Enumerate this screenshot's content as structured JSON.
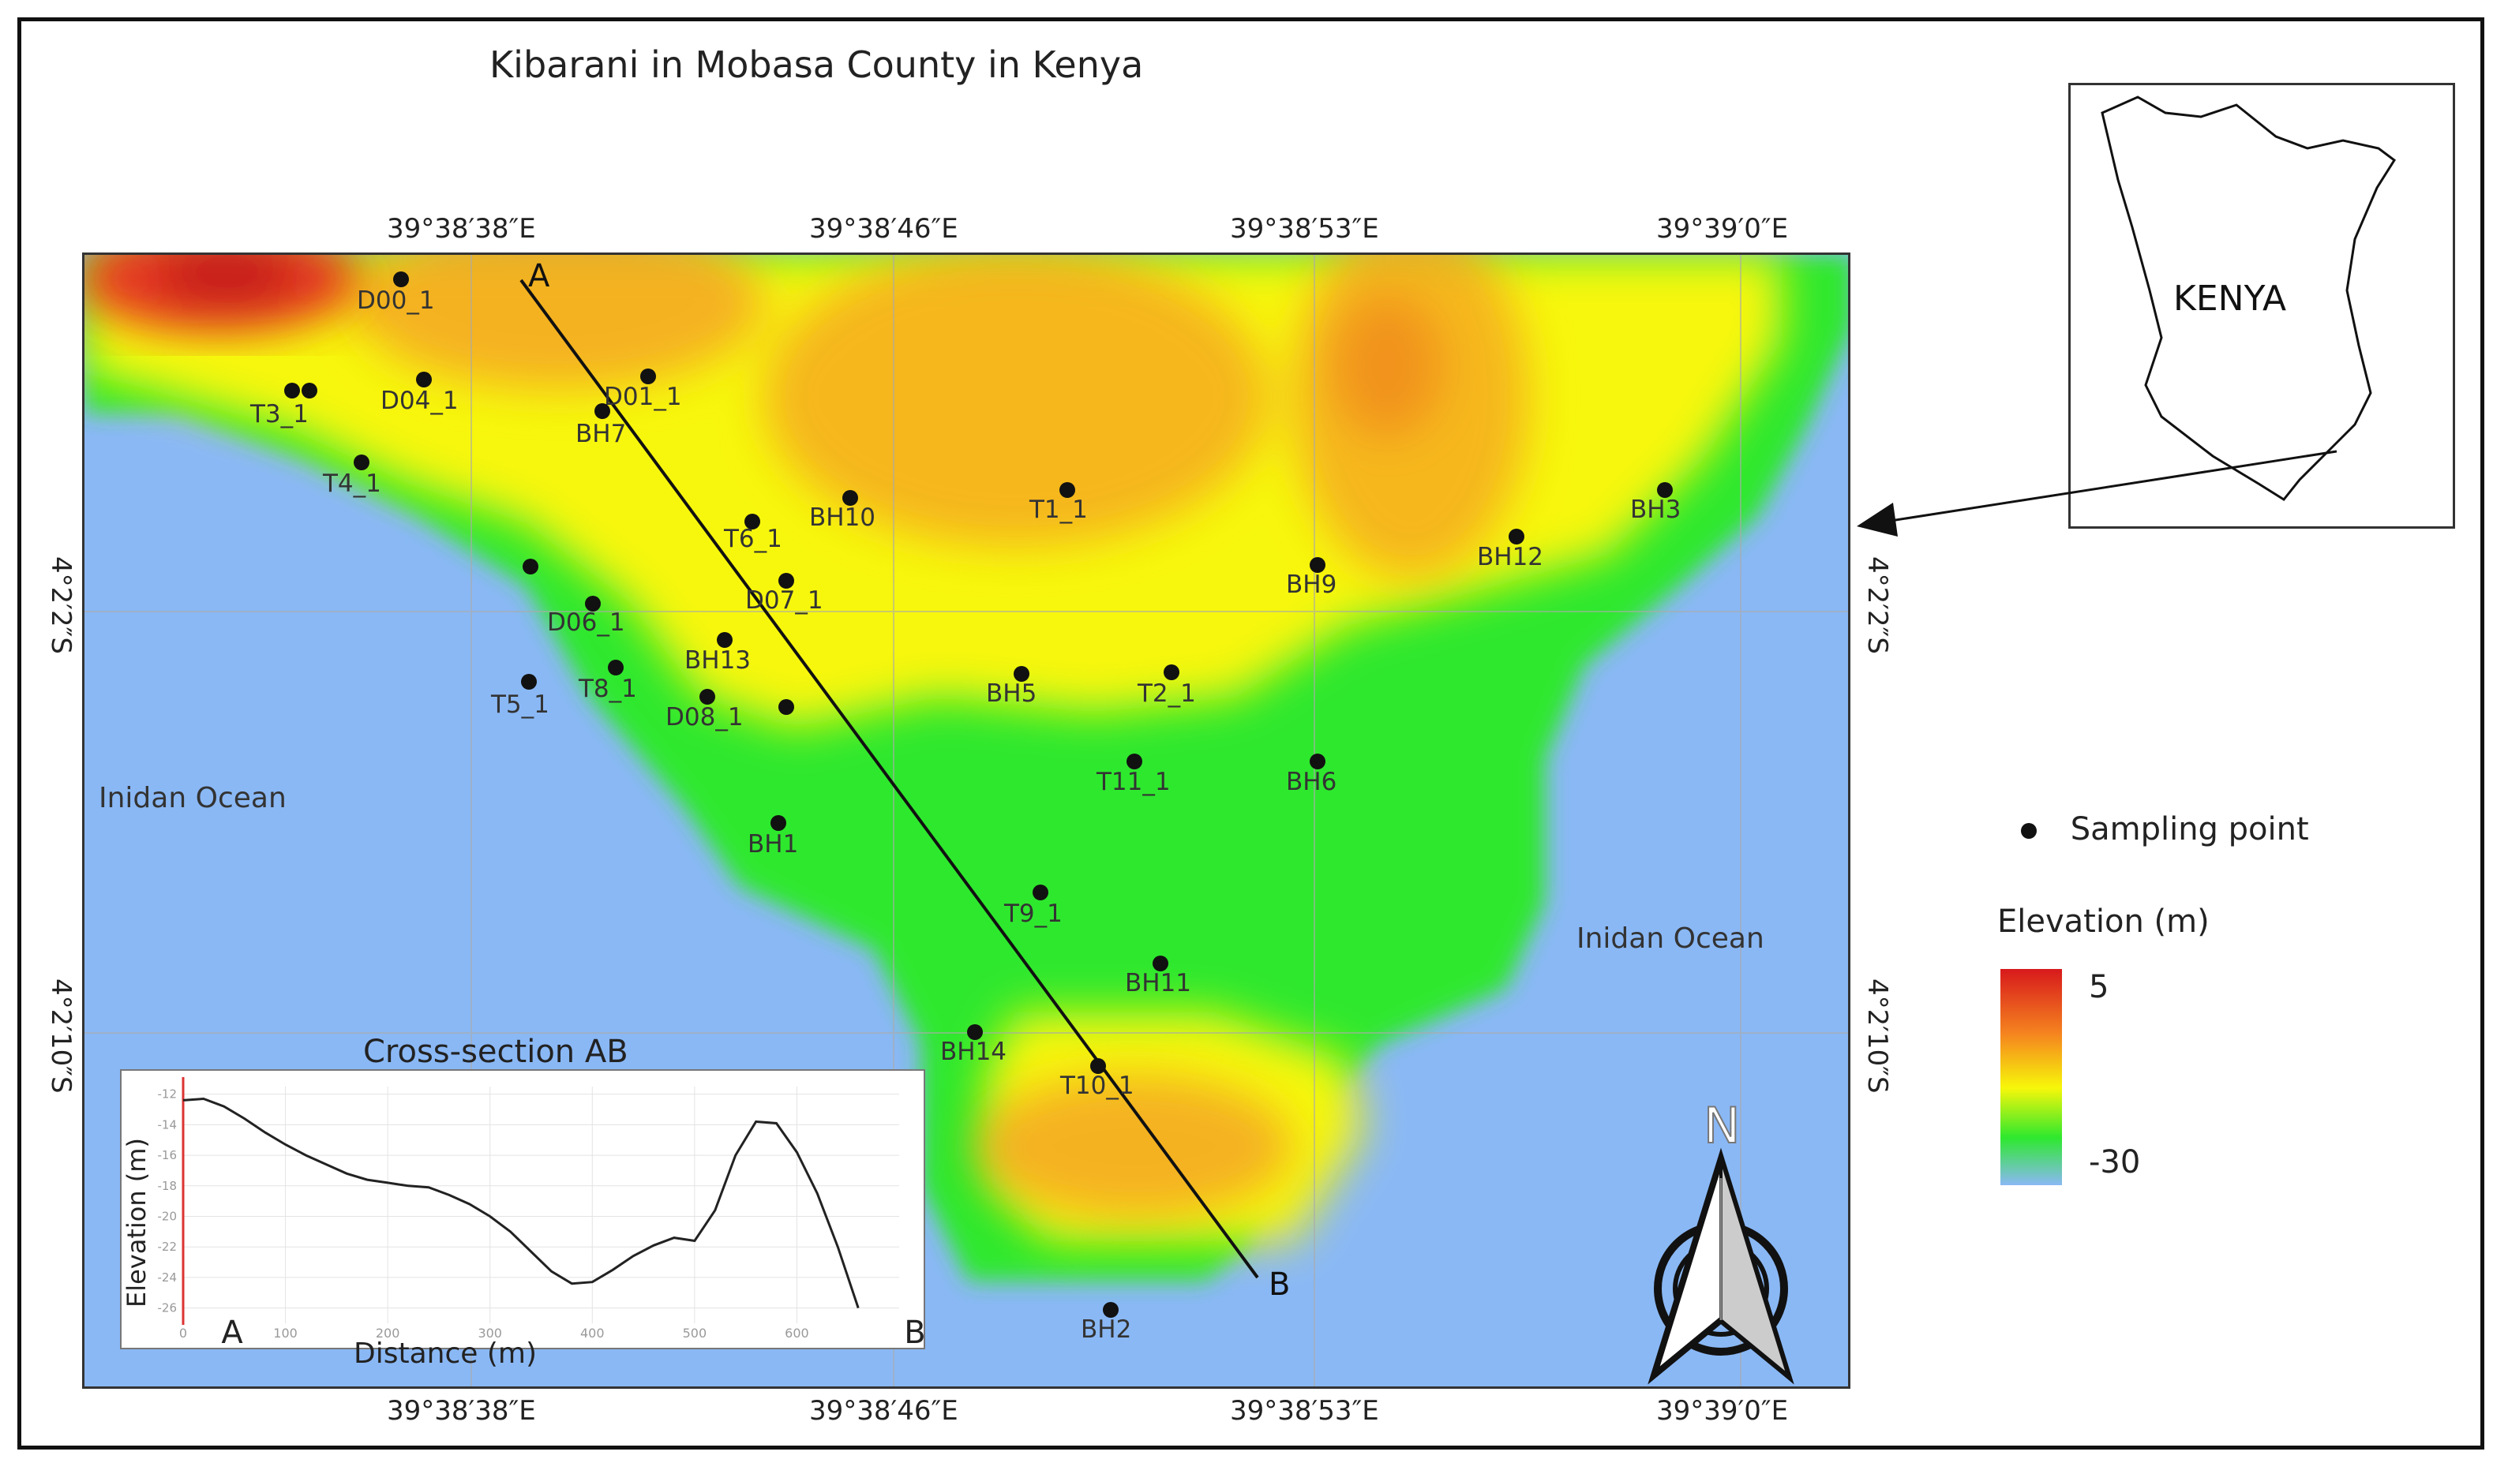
{
  "title": "Kibarani in Mobasa County in Kenya",
  "top_ticks": [
    "39°38′38″E",
    "39°38′46″E",
    "39°38′53″E",
    "39°39′0″E"
  ],
  "bottom_ticks": [
    "39°38′38″E",
    "39°38′46″E",
    "39°38′53″E",
    "39°39′0″E"
  ],
  "left_ticks": [
    "4°2′2″S",
    "4°2′10″S"
  ],
  "right_ticks": [
    "4°2′2″S",
    "4°2′10″S"
  ],
  "ocean_labels": [
    "Inidan Ocean",
    "Inidan Ocean"
  ],
  "transect": {
    "start": "A",
    "end": "B"
  },
  "sampling_points": [
    "D00_1",
    "D04_1",
    "D01_1",
    "T3_1",
    "BH7",
    "T4_1",
    "T6_1",
    "BH10",
    "T1_1",
    "D07_1",
    "BH3",
    "BH12",
    "BH9",
    "D06_1",
    "BH13",
    "T5_1",
    "T8_1",
    "D08_1",
    "BH5",
    "T2_1",
    "T11_1",
    "BH6",
    "BH1",
    "T9_1",
    "BH11",
    "BH14",
    "T10_1",
    "BH2"
  ],
  "inset": {
    "country": "KENYA"
  },
  "legend": {
    "point_label": "Sampling point",
    "elevation_title": "Elevation (m)",
    "max_label": "5",
    "min_label": "-30",
    "colors": [
      "#d7191c",
      "#f5841f",
      "#f7f70a",
      "#2ee82e",
      "#8ab8f5"
    ]
  },
  "north_label": "N",
  "cross_section": {
    "title": "Cross-section AB",
    "xlabel": "Distance (m)",
    "ylabel": "Elevation (m)",
    "start_label": "A",
    "end_label": "B",
    "x_ticks": [
      "0",
      "100",
      "200",
      "300",
      "400",
      "500",
      "600"
    ],
    "y_ticks": [
      "-12",
      "-14",
      "-16",
      "-18",
      "-20",
      "-22",
      "-24",
      "-26"
    ],
    "profile": {
      "distance_m": [
        0,
        20,
        40,
        60,
        80,
        100,
        120,
        140,
        160,
        180,
        200,
        220,
        240,
        260,
        280,
        300,
        320,
        340,
        360,
        380,
        400,
        420,
        440,
        460,
        480,
        500,
        520,
        540,
        560,
        580,
        600,
        620,
        640,
        660
      ],
      "elevation_m": [
        -12.4,
        -12.3,
        -12.8,
        -13.6,
        -14.5,
        -15.3,
        -16.0,
        -16.6,
        -17.2,
        -17.6,
        -17.8,
        -18.0,
        -18.1,
        -18.6,
        -19.2,
        -20.0,
        -21.0,
        -22.3,
        -23.6,
        -24.4,
        -24.3,
        -23.5,
        -22.6,
        -21.9,
        -21.4,
        -21.6,
        -19.6,
        -16.0,
        -13.8,
        -13.9,
        -15.8,
        -18.5,
        -22.0,
        -26.0
      ]
    }
  }
}
